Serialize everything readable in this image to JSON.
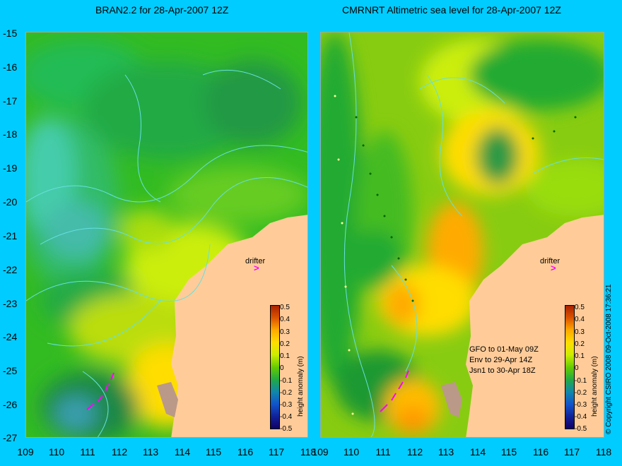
{
  "left_panel": {
    "title": "BRAN2.2 for 28-Apr-2007 12Z",
    "drifter_label": "drifter",
    "colorbar_axis": "height anomaly (m)"
  },
  "right_panel": {
    "title": "CMRNRT Altimetric sea level  for 28-Apr-2007 12Z",
    "drifter_label": "drifter",
    "colorbar_axis": "height anomaly (m)",
    "satellite_lines": [
      "GFO to 01-May 09Z",
      "Env to 29-Apr 14Z",
      "Jsn1 to 30-Apr 18Z"
    ]
  },
  "y_ticks": [
    "-15",
    "-16",
    "-17",
    "-18",
    "-19",
    "-20",
    "-21",
    "-22",
    "-23",
    "-24",
    "-25",
    "-26",
    "-27"
  ],
  "x_ticks_left": [
    "109",
    "110",
    "111",
    "112",
    "113",
    "114",
    "115",
    "116",
    "117",
    "118"
  ],
  "x_ticks_right": [
    "109",
    "110",
    "111",
    "112",
    "113",
    "114",
    "115",
    "116",
    "117",
    "118"
  ],
  "colorbar_ticks": [
    "0.5",
    "0.4",
    "0.3",
    "0.2",
    "0.1",
    "0",
    "-0.1",
    "-0.2",
    "-0.3",
    "-0.4",
    "-0.5"
  ],
  "copyright": "© Copyright CSIRO 2008    09-Oct-2008 17:36:21",
  "colors": {
    "background": "#00ccff",
    "land": "#ffcc99",
    "sea_high": "#cc5500",
    "sea_mid": "#99dd00",
    "sea_low": "#1e9930",
    "drifter": "#ff00ff"
  }
}
